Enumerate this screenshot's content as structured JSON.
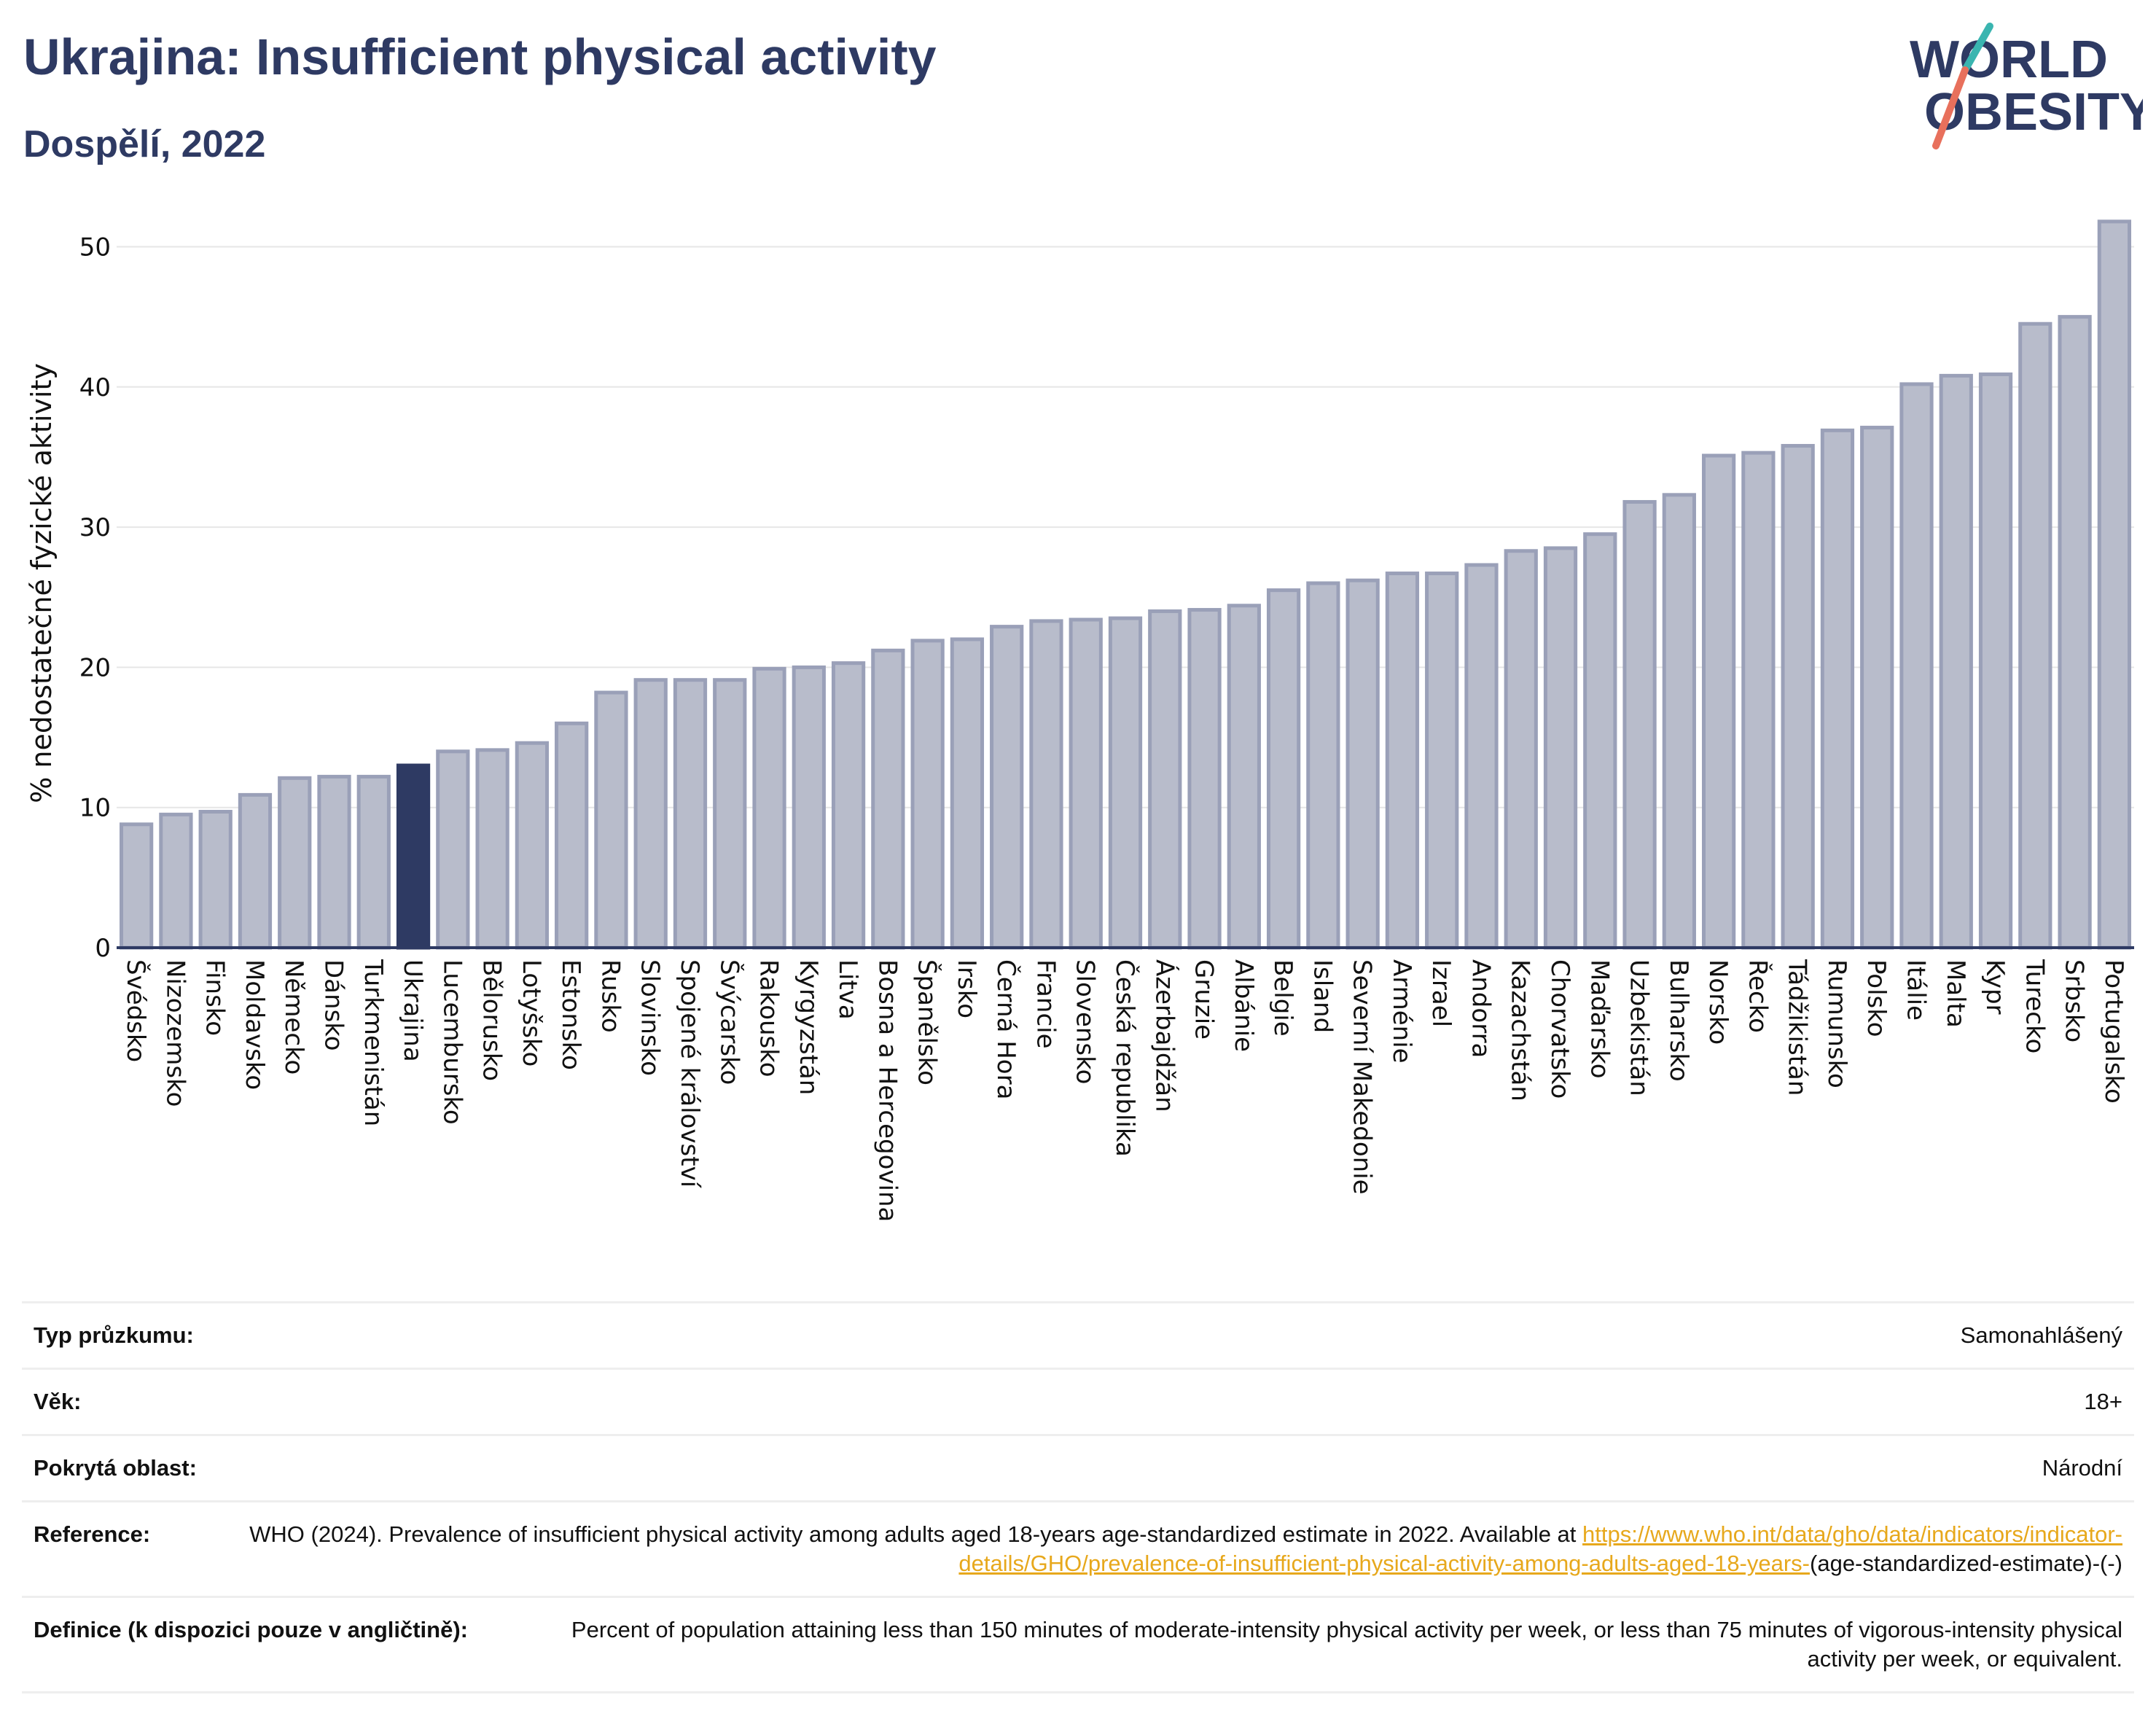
{
  "header": {
    "title": "Ukrajina: Insufficient physical activity",
    "subtitle": "Dospělí, 2022"
  },
  "logo": {
    "line1": "WORLD",
    "line2": "OBESITY"
  },
  "colors": {
    "bar": "#b8bccb",
    "bar_stroke": "#9aa0b8",
    "highlight": "#2e3a63",
    "title": "#2e3a63",
    "link": "#e7a81c",
    "logo_teal": "#3ab5b0",
    "logo_coral": "#e8705c"
  },
  "chart_data": {
    "type": "bar",
    "title": "",
    "xlabel": "",
    "ylabel": "% nedostatečné fyzické aktivity",
    "ylim": [
      0,
      52
    ],
    "yticks": [
      0,
      10,
      20,
      30,
      40,
      50
    ],
    "grid": true,
    "highlight_category": "Ukrajina",
    "categories": [
      "Švédsko",
      "Nizozemsko",
      "Finsko",
      "Moldavsko",
      "Německo",
      "Dánsko",
      "Turkmenistán",
      "Ukrajina",
      "Lucembursko",
      "Bělorusko",
      "Lotyšsko",
      "Estonsko",
      "Rusko",
      "Slovinsko",
      "Spojené království",
      "Švýcarsko",
      "Rakousko",
      "Kyrgyzstán",
      "Litva",
      "Bosna a Hercegovina",
      "Španělsko",
      "Irsko",
      "Černá Hora",
      "Francie",
      "Slovensko",
      "Česká republika",
      "Ázerbajdžán",
      "Gruzie",
      "Albánie",
      "Belgie",
      "Island",
      "Severní Makedonie",
      "Arménie",
      "Izrael",
      "Andorra",
      "Kazachstán",
      "Chorvatsko",
      "Maďarsko",
      "Uzbekistán",
      "Bulharsko",
      "Norsko",
      "Řecko",
      "Tádžikistán",
      "Rumunsko",
      "Polsko",
      "Itálie",
      "Malta",
      "Kypr",
      "Turecko",
      "Srbsko",
      "Portugalsko"
    ],
    "values": [
      8.8,
      9.5,
      9.7,
      10.9,
      12.1,
      12.2,
      12.2,
      13.0,
      14.0,
      14.1,
      14.6,
      16.0,
      18.2,
      19.1,
      19.1,
      19.1,
      19.9,
      20.0,
      20.3,
      21.2,
      21.9,
      22.0,
      22.9,
      23.3,
      23.4,
      23.5,
      24.0,
      24.1,
      24.4,
      25.5,
      26.0,
      26.2,
      26.7,
      26.7,
      27.3,
      28.3,
      28.5,
      29.5,
      31.8,
      32.3,
      35.1,
      35.3,
      35.8,
      36.9,
      37.1,
      40.2,
      40.8,
      40.9,
      44.5,
      45.0,
      51.8
    ]
  },
  "info": {
    "survey_label": "Typ průzkumu:",
    "survey_value": "Samonahlášený",
    "age_label": "Věk:",
    "age_value": "18+",
    "area_label": "Pokrytá oblast:",
    "area_value": "Národní",
    "reference_label": "Reference:",
    "reference_text": "WHO (2024). Prevalence of insufficient physical activity among adults aged 18-years age-standardized estimate in 2022. Available at ",
    "reference_link": "https://www.who.int/data/gho/data/indicators/indicator-details/GHO/prevalence-of-insufficient-physical-activity-among-adults-aged-18-years-",
    "reference_suffix": "(age-standardized-estimate)-(-)",
    "definition_label": "Definice (k dispozici pouze v angličtině):",
    "definition_value": "Percent of population attaining less than 150 minutes of moderate-intensity physical activity per week, or less than 75 minutes of vigorous-intensity physical activity per week, or equivalent."
  }
}
